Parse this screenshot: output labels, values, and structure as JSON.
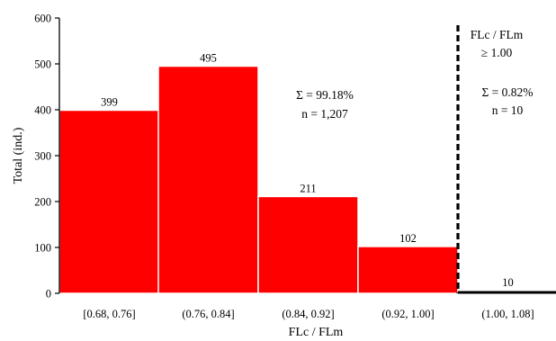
{
  "chart_data": {
    "type": "bar",
    "xlabel": "FLc / FLm",
    "ylabel": "Total (ind.)",
    "ylim": [
      0,
      600
    ],
    "yticks": [
      "0",
      "100",
      "200",
      "300",
      "400",
      "500",
      "600"
    ],
    "categories": [
      "[0.68, 0.76]",
      "(0.76, 0.84]",
      "(0.84, 0.92]",
      "(0.92, 1.00]",
      "(1.00, 1.08]"
    ],
    "values": [
      399,
      495,
      211,
      102,
      10
    ],
    "value_labels": [
      "399",
      "495",
      "211",
      "102",
      "10"
    ],
    "bar_color": "#ff0000",
    "highlight_bar_color": "#000000",
    "divider_style": "dashed",
    "divider_position": "between (0.92, 1.00] and (1.00, 1.08]",
    "grid": false,
    "annotations": {
      "left_sum": "Σ = 99.18%",
      "left_n": "n = 1,207",
      "right_heading_1": "FLc / FLm",
      "right_heading_2": "≥ 1.00",
      "right_sum": "Σ = 0.82%",
      "right_n": "n = 10"
    }
  }
}
